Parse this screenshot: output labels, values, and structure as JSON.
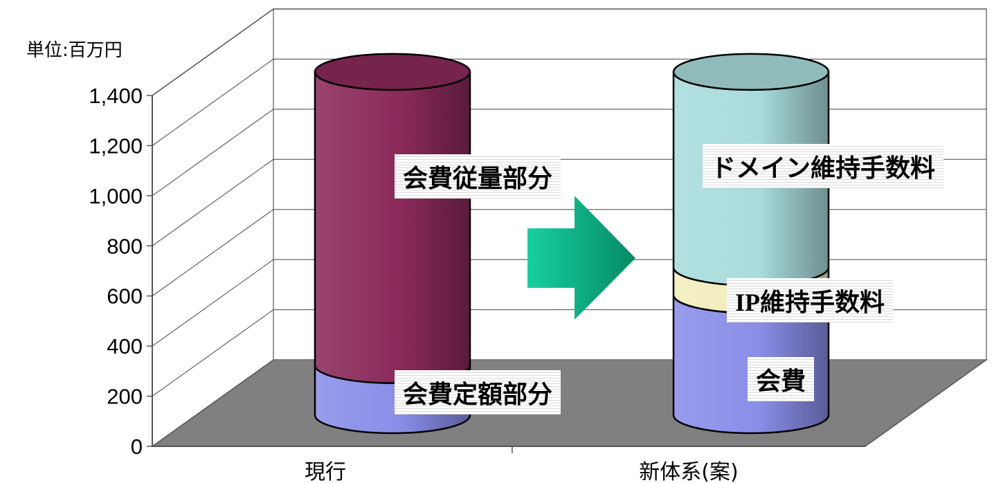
{
  "unit_label": "単位:百万円",
  "chart_data": {
    "type": "bar",
    "variant": "3d-stacked-cylinder",
    "categories": [
      "現行",
      "新体系(案)"
    ],
    "series": [
      {
        "name": "会費定額部分",
        "category": "現行",
        "base": 0,
        "value": 200,
        "color": "#8a8ee8"
      },
      {
        "name": "会費従量部分",
        "category": "現行",
        "base": 200,
        "value": 1170,
        "color": "#8b2a5a"
      },
      {
        "name": "会費",
        "category": "新体系(案)",
        "base": 0,
        "value": 480,
        "color": "#8a8ee8"
      },
      {
        "name": "IP維持手数料",
        "category": "新体系(案)",
        "base": 480,
        "value": 110,
        "color": "#f2edbd"
      },
      {
        "name": "ドメイン維持手数料",
        "category": "新体系(案)",
        "base": 590,
        "value": 780,
        "color": "#a9dcdc"
      }
    ],
    "yticks": [
      "0",
      "200",
      "400",
      "600",
      "800",
      "1,000",
      "1,200",
      "1,400"
    ],
    "ylim": [
      0,
      1400
    ],
    "grid": true,
    "arrow": {
      "direction": "right",
      "color": "#0aa882"
    }
  }
}
